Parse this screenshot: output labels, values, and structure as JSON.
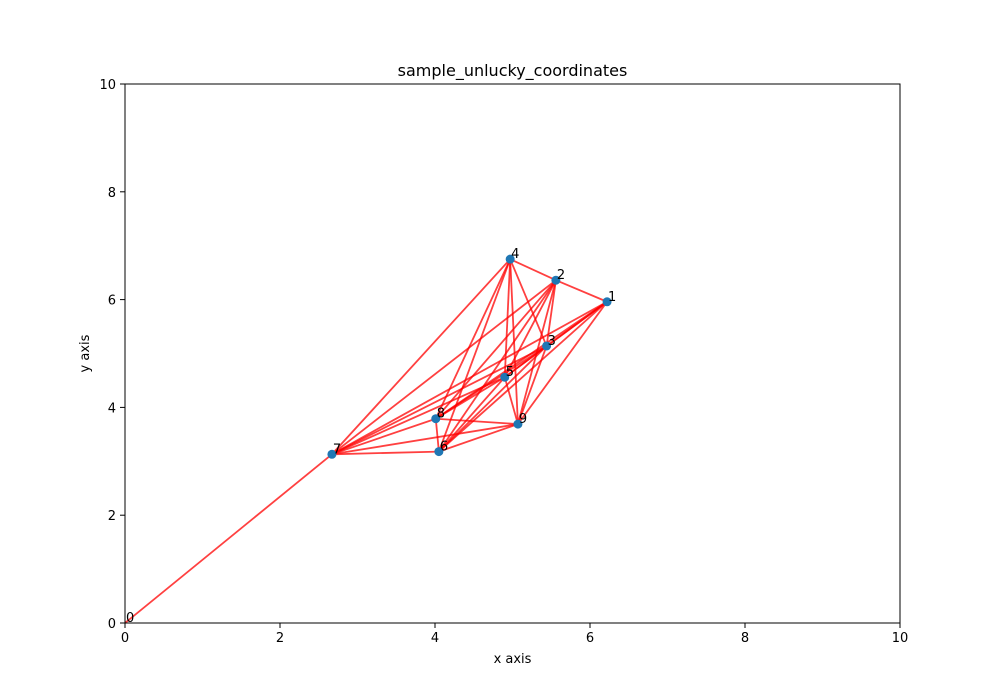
{
  "chart_data": {
    "type": "scatter",
    "title": "sample_unlucky_coordinates",
    "xlabel": "x axis",
    "ylabel": "y axis",
    "xlim": [
      0,
      10
    ],
    "ylim": [
      0,
      10
    ],
    "xticks": [
      0,
      2,
      4,
      6,
      8,
      10
    ],
    "yticks": [
      0,
      2,
      4,
      6,
      8,
      10
    ],
    "grid": false,
    "point_color": "#1f77b4",
    "edge_color": "#ff0000",
    "points": [
      {
        "label": "0",
        "x": 0.0,
        "y": 0.0
      },
      {
        "label": "1",
        "x": 6.22,
        "y": 5.96
      },
      {
        "label": "2",
        "x": 5.56,
        "y": 6.36
      },
      {
        "label": "3",
        "x": 5.44,
        "y": 5.14
      },
      {
        "label": "4",
        "x": 4.97,
        "y": 6.75
      },
      {
        "label": "5",
        "x": 4.9,
        "y": 4.56
      },
      {
        "label": "6",
        "x": 4.05,
        "y": 3.18
      },
      {
        "label": "7",
        "x": 2.67,
        "y": 3.13
      },
      {
        "label": "8",
        "x": 4.01,
        "y": 3.79
      },
      {
        "label": "9",
        "x": 5.07,
        "y": 3.69
      }
    ],
    "edges": [
      [
        0,
        7
      ],
      [
        7,
        4
      ],
      [
        7,
        2
      ],
      [
        7,
        1
      ],
      [
        7,
        3
      ],
      [
        7,
        5
      ],
      [
        7,
        6
      ],
      [
        7,
        8
      ],
      [
        7,
        9
      ],
      [
        4,
        2
      ],
      [
        4,
        3
      ],
      [
        4,
        5
      ],
      [
        4,
        6
      ],
      [
        4,
        8
      ],
      [
        4,
        9
      ],
      [
        2,
        1
      ],
      [
        2,
        3
      ],
      [
        2,
        5
      ],
      [
        2,
        6
      ],
      [
        2,
        8
      ],
      [
        2,
        9
      ],
      [
        1,
        3
      ],
      [
        1,
        5
      ],
      [
        1,
        6
      ],
      [
        1,
        8
      ],
      [
        1,
        9
      ],
      [
        3,
        5
      ],
      [
        3,
        6
      ],
      [
        3,
        8
      ],
      [
        3,
        9
      ],
      [
        5,
        6
      ],
      [
        5,
        8
      ],
      [
        5,
        9
      ],
      [
        6,
        8
      ],
      [
        6,
        9
      ],
      [
        8,
        9
      ]
    ]
  }
}
